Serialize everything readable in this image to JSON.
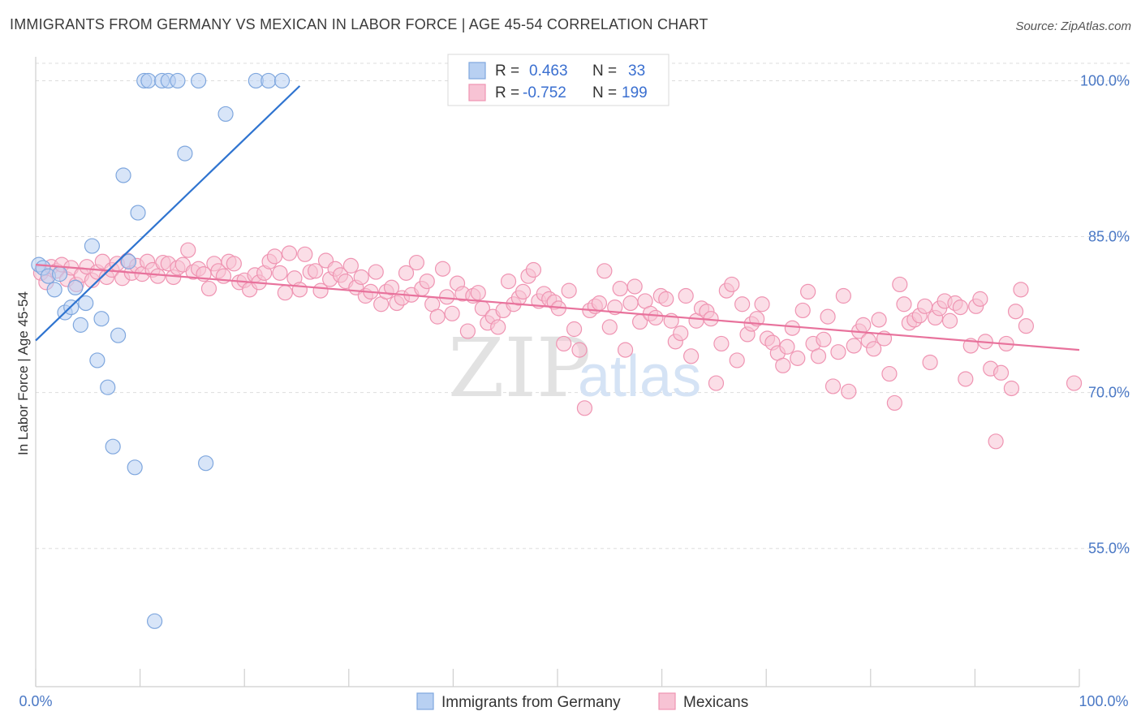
{
  "header": {
    "title": "IMMIGRANTS FROM GERMANY VS MEXICAN IN LABOR FORCE | AGE 45-54 CORRELATION CHART",
    "source": "Source: ZipAtlas.com"
  },
  "watermark": {
    "zip": "ZIP",
    "atlas": "atlas"
  },
  "colors": {
    "blue_fill": "#b8d0f2",
    "blue_stroke": "#7fa7de",
    "blue_line": "#2f74d0",
    "pink_fill": "#f7c3d4",
    "pink_stroke": "#ef94b2",
    "pink_line": "#e8729c",
    "axis_text": "#4a78c5",
    "grid": "#dddddd"
  },
  "legend": {
    "rows": [
      {
        "r_label": "R =",
        "r_value": "0.463",
        "n_label": "N =",
        "n_value": "33"
      },
      {
        "r_label": "R =",
        "r_value": "-0.752",
        "n_label": "N =",
        "n_value": "199"
      }
    ]
  },
  "chart_data": {
    "type": "scatter",
    "title": "IMMIGRANTS FROM GERMANY VS MEXICAN IN LABOR FORCE | AGE 45-54 CORRELATION CHART",
    "xlabel": "",
    "ylabel": "In Labor Force | Age 45-54",
    "xlim": [
      0,
      100
    ],
    "ylim": [
      41.7,
      102.3
    ],
    "x_tick_labels": [
      "0.0%",
      "100.0%"
    ],
    "y_ticks": [
      55,
      70,
      85,
      100
    ],
    "y_tick_labels": [
      "55.0%",
      "70.0%",
      "85.0%",
      "100.0%"
    ],
    "series": [
      {
        "name": "Immigrants from Germany",
        "R": 0.463,
        "N": 33,
        "trend": {
          "x": [
            0,
            25.3
          ],
          "y": [
            75.0,
            99.5
          ]
        },
        "points": [
          {
            "x": 0.3,
            "y": 82.3
          },
          {
            "x": 0.7,
            "y": 82.0
          },
          {
            "x": 1.2,
            "y": 81.2
          },
          {
            "x": 1.8,
            "y": 79.9
          },
          {
            "x": 2.3,
            "y": 81.4
          },
          {
            "x": 2.8,
            "y": 77.7
          },
          {
            "x": 3.4,
            "y": 78.2
          },
          {
            "x": 3.8,
            "y": 80.1
          },
          {
            "x": 4.3,
            "y": 76.5
          },
          {
            "x": 4.8,
            "y": 78.6
          },
          {
            "x": 5.4,
            "y": 84.1
          },
          {
            "x": 6.3,
            "y": 77.1
          },
          {
            "x": 5.9,
            "y": 73.1
          },
          {
            "x": 6.9,
            "y": 70.5
          },
          {
            "x": 7.4,
            "y": 64.8
          },
          {
            "x": 7.9,
            "y": 75.5
          },
          {
            "x": 8.4,
            "y": 90.9
          },
          {
            "x": 8.9,
            "y": 82.6
          },
          {
            "x": 9.5,
            "y": 62.8
          },
          {
            "x": 9.8,
            "y": 87.3
          },
          {
            "x": 10.4,
            "y": 100.0
          },
          {
            "x": 10.8,
            "y": 100.0
          },
          {
            "x": 11.4,
            "y": 48.0
          },
          {
            "x": 12.1,
            "y": 100.0
          },
          {
            "x": 12.7,
            "y": 100.0
          },
          {
            "x": 13.6,
            "y": 100.0
          },
          {
            "x": 14.3,
            "y": 93.0
          },
          {
            "x": 15.6,
            "y": 100.0
          },
          {
            "x": 16.3,
            "y": 63.2
          },
          {
            "x": 18.2,
            "y": 96.8
          },
          {
            "x": 21.1,
            "y": 100.0
          },
          {
            "x": 22.3,
            "y": 100.0
          },
          {
            "x": 23.6,
            "y": 100.0
          }
        ]
      },
      {
        "name": "Mexicans",
        "R": -0.752,
        "N": 199,
        "trend": {
          "x": [
            0,
            100
          ],
          "y": [
            82.3,
            74.1
          ]
        },
        "points": [
          {
            "x": 0.5,
            "y": 81.5
          },
          {
            "x": 1.0,
            "y": 80.6
          },
          {
            "x": 1.5,
            "y": 82.1
          },
          {
            "x": 2.0,
            "y": 81.7
          },
          {
            "x": 2.5,
            "y": 82.3
          },
          {
            "x": 3.0,
            "y": 80.9
          },
          {
            "x": 3.4,
            "y": 82.0
          },
          {
            "x": 3.9,
            "y": 80.4
          },
          {
            "x": 4.4,
            "y": 81.3
          },
          {
            "x": 4.9,
            "y": 82.1
          },
          {
            "x": 5.4,
            "y": 80.8
          },
          {
            "x": 5.9,
            "y": 81.6
          },
          {
            "x": 6.4,
            "y": 82.6
          },
          {
            "x": 6.8,
            "y": 81.1
          },
          {
            "x": 7.3,
            "y": 81.8
          },
          {
            "x": 7.8,
            "y": 82.4
          },
          {
            "x": 8.3,
            "y": 81.0
          },
          {
            "x": 8.8,
            "y": 82.7
          },
          {
            "x": 9.2,
            "y": 81.5
          },
          {
            "x": 9.7,
            "y": 82.2
          },
          {
            "x": 10.2,
            "y": 81.4
          },
          {
            "x": 10.7,
            "y": 82.6
          },
          {
            "x": 11.2,
            "y": 81.8
          },
          {
            "x": 11.7,
            "y": 81.2
          },
          {
            "x": 12.2,
            "y": 82.5
          },
          {
            "x": 12.7,
            "y": 82.4
          },
          {
            "x": 13.2,
            "y": 81.1
          },
          {
            "x": 13.6,
            "y": 82.0
          },
          {
            "x": 14.1,
            "y": 82.3
          },
          {
            "x": 14.6,
            "y": 83.7
          },
          {
            "x": 15.1,
            "y": 81.6
          },
          {
            "x": 15.6,
            "y": 81.9
          },
          {
            "x": 16.1,
            "y": 81.4
          },
          {
            "x": 16.6,
            "y": 80.0
          },
          {
            "x": 17.1,
            "y": 82.4
          },
          {
            "x": 17.5,
            "y": 81.7
          },
          {
            "x": 18.0,
            "y": 81.2
          },
          {
            "x": 18.5,
            "y": 82.6
          },
          {
            "x": 19.0,
            "y": 82.4
          },
          {
            "x": 19.5,
            "y": 80.6
          },
          {
            "x": 20.0,
            "y": 80.8
          },
          {
            "x": 20.5,
            "y": 79.9
          },
          {
            "x": 21.0,
            "y": 81.3
          },
          {
            "x": 21.4,
            "y": 80.6
          },
          {
            "x": 21.9,
            "y": 81.5
          },
          {
            "x": 22.4,
            "y": 82.6
          },
          {
            "x": 22.9,
            "y": 83.1
          },
          {
            "x": 23.4,
            "y": 81.5
          },
          {
            "x": 23.9,
            "y": 79.6
          },
          {
            "x": 24.3,
            "y": 83.4
          },
          {
            "x": 24.8,
            "y": 81.0
          },
          {
            "x": 25.3,
            "y": 79.9
          },
          {
            "x": 25.8,
            "y": 83.3
          },
          {
            "x": 26.3,
            "y": 81.6
          },
          {
            "x": 26.8,
            "y": 81.7
          },
          {
            "x": 27.3,
            "y": 79.8
          },
          {
            "x": 27.8,
            "y": 82.7
          },
          {
            "x": 28.2,
            "y": 80.9
          },
          {
            "x": 28.7,
            "y": 81.9
          },
          {
            "x": 29.2,
            "y": 81.3
          },
          {
            "x": 29.7,
            "y": 80.7
          },
          {
            "x": 30.2,
            "y": 82.2
          },
          {
            "x": 30.7,
            "y": 80.1
          },
          {
            "x": 31.2,
            "y": 81.1
          },
          {
            "x": 31.6,
            "y": 79.3
          },
          {
            "x": 32.1,
            "y": 79.7
          },
          {
            "x": 32.6,
            "y": 81.6
          },
          {
            "x": 33.1,
            "y": 78.5
          },
          {
            "x": 33.6,
            "y": 79.7
          },
          {
            "x": 34.1,
            "y": 80.1
          },
          {
            "x": 34.6,
            "y": 78.6
          },
          {
            "x": 35.1,
            "y": 79.1
          },
          {
            "x": 35.5,
            "y": 81.5
          },
          {
            "x": 36.0,
            "y": 79.4
          },
          {
            "x": 36.5,
            "y": 82.5
          },
          {
            "x": 37.0,
            "y": 80.0
          },
          {
            "x": 37.5,
            "y": 80.7
          },
          {
            "x": 38.0,
            "y": 78.5
          },
          {
            "x": 38.5,
            "y": 77.3
          },
          {
            "x": 39.0,
            "y": 81.9
          },
          {
            "x": 39.4,
            "y": 79.2
          },
          {
            "x": 39.9,
            "y": 77.6
          },
          {
            "x": 40.4,
            "y": 80.5
          },
          {
            "x": 40.9,
            "y": 79.5
          },
          {
            "x": 41.4,
            "y": 75.9
          },
          {
            "x": 41.9,
            "y": 79.3
          },
          {
            "x": 42.4,
            "y": 79.6
          },
          {
            "x": 42.8,
            "y": 78.1
          },
          {
            "x": 43.3,
            "y": 76.7
          },
          {
            "x": 43.8,
            "y": 77.3
          },
          {
            "x": 44.3,
            "y": 76.3
          },
          {
            "x": 44.8,
            "y": 77.9
          },
          {
            "x": 45.3,
            "y": 80.7
          },
          {
            "x": 45.8,
            "y": 78.5
          },
          {
            "x": 46.3,
            "y": 79.1
          },
          {
            "x": 46.7,
            "y": 79.7
          },
          {
            "x": 47.2,
            "y": 81.2
          },
          {
            "x": 47.7,
            "y": 81.8
          },
          {
            "x": 48.2,
            "y": 78.8
          },
          {
            "x": 48.7,
            "y": 79.5
          },
          {
            "x": 49.2,
            "y": 79.0
          },
          {
            "x": 49.7,
            "y": 78.7
          },
          {
            "x": 50.1,
            "y": 78.1
          },
          {
            "x": 50.6,
            "y": 74.7
          },
          {
            "x": 51.1,
            "y": 79.8
          },
          {
            "x": 51.6,
            "y": 76.1
          },
          {
            "x": 52.1,
            "y": 74.1
          },
          {
            "x": 52.6,
            "y": 68.5
          },
          {
            "x": 53.1,
            "y": 77.9
          },
          {
            "x": 53.6,
            "y": 78.3
          },
          {
            "x": 54.0,
            "y": 78.6
          },
          {
            "x": 54.5,
            "y": 81.7
          },
          {
            "x": 55.0,
            "y": 76.3
          },
          {
            "x": 55.5,
            "y": 78.2
          },
          {
            "x": 56.0,
            "y": 80.0
          },
          {
            "x": 56.5,
            "y": 74.1
          },
          {
            "x": 57.0,
            "y": 78.6
          },
          {
            "x": 57.4,
            "y": 80.2
          },
          {
            "x": 57.9,
            "y": 76.8
          },
          {
            "x": 58.4,
            "y": 78.8
          },
          {
            "x": 58.9,
            "y": 77.6
          },
          {
            "x": 59.4,
            "y": 77.2
          },
          {
            "x": 59.9,
            "y": 79.3
          },
          {
            "x": 60.4,
            "y": 79.0
          },
          {
            "x": 60.9,
            "y": 76.9
          },
          {
            "x": 61.3,
            "y": 74.9
          },
          {
            "x": 61.8,
            "y": 75.7
          },
          {
            "x": 62.3,
            "y": 79.3
          },
          {
            "x": 62.8,
            "y": 73.5
          },
          {
            "x": 63.3,
            "y": 76.9
          },
          {
            "x": 63.8,
            "y": 78.1
          },
          {
            "x": 64.3,
            "y": 77.8
          },
          {
            "x": 64.7,
            "y": 77.1
          },
          {
            "x": 65.2,
            "y": 70.9
          },
          {
            "x": 65.7,
            "y": 74.7
          },
          {
            "x": 66.2,
            "y": 79.8
          },
          {
            "x": 66.7,
            "y": 80.4
          },
          {
            "x": 67.2,
            "y": 73.1
          },
          {
            "x": 67.7,
            "y": 78.5
          },
          {
            "x": 68.2,
            "y": 75.6
          },
          {
            "x": 68.6,
            "y": 76.6
          },
          {
            "x": 69.1,
            "y": 77.1
          },
          {
            "x": 69.6,
            "y": 78.5
          },
          {
            "x": 70.1,
            "y": 75.2
          },
          {
            "x": 70.6,
            "y": 74.8
          },
          {
            "x": 71.1,
            "y": 73.8
          },
          {
            "x": 71.6,
            "y": 72.6
          },
          {
            "x": 72.0,
            "y": 74.4
          },
          {
            "x": 72.5,
            "y": 76.2
          },
          {
            "x": 73.0,
            "y": 73.3
          },
          {
            "x": 73.5,
            "y": 77.9
          },
          {
            "x": 74.0,
            "y": 79.7
          },
          {
            "x": 74.5,
            "y": 74.7
          },
          {
            "x": 75.0,
            "y": 73.5
          },
          {
            "x": 75.5,
            "y": 75.1
          },
          {
            "x": 75.9,
            "y": 77.3
          },
          {
            "x": 76.4,
            "y": 70.6
          },
          {
            "x": 76.9,
            "y": 73.9
          },
          {
            "x": 77.4,
            "y": 79.3
          },
          {
            "x": 77.9,
            "y": 70.1
          },
          {
            "x": 78.4,
            "y": 74.5
          },
          {
            "x": 78.9,
            "y": 75.9
          },
          {
            "x": 79.3,
            "y": 76.5
          },
          {
            "x": 79.8,
            "y": 75.0
          },
          {
            "x": 80.3,
            "y": 74.2
          },
          {
            "x": 80.8,
            "y": 77.0
          },
          {
            "x": 81.3,
            "y": 75.2
          },
          {
            "x": 81.8,
            "y": 71.8
          },
          {
            "x": 82.3,
            "y": 69.0
          },
          {
            "x": 82.8,
            "y": 80.4
          },
          {
            "x": 83.2,
            "y": 78.5
          },
          {
            "x": 83.7,
            "y": 76.7
          },
          {
            "x": 84.2,
            "y": 77.0
          },
          {
            "x": 84.7,
            "y": 77.4
          },
          {
            "x": 85.2,
            "y": 78.3
          },
          {
            "x": 85.7,
            "y": 72.9
          },
          {
            "x": 86.2,
            "y": 77.2
          },
          {
            "x": 86.6,
            "y": 78.1
          },
          {
            "x": 87.1,
            "y": 78.8
          },
          {
            "x": 87.6,
            "y": 76.9
          },
          {
            "x": 88.1,
            "y": 78.6
          },
          {
            "x": 88.6,
            "y": 78.2
          },
          {
            "x": 89.1,
            "y": 71.3
          },
          {
            "x": 89.6,
            "y": 74.5
          },
          {
            "x": 90.1,
            "y": 78.3
          },
          {
            "x": 90.5,
            "y": 79.0
          },
          {
            "x": 91.0,
            "y": 74.9
          },
          {
            "x": 91.5,
            "y": 72.3
          },
          {
            "x": 92.0,
            "y": 65.3
          },
          {
            "x": 92.5,
            "y": 71.9
          },
          {
            "x": 93.0,
            "y": 74.7
          },
          {
            "x": 93.5,
            "y": 70.4
          },
          {
            "x": 93.9,
            "y": 77.8
          },
          {
            "x": 94.4,
            "y": 79.9
          },
          {
            "x": 94.9,
            "y": 76.4
          },
          {
            "x": 99.5,
            "y": 70.9
          }
        ]
      }
    ]
  },
  "bottom_legend": [
    "Immigrants from Germany",
    "Mexicans"
  ]
}
